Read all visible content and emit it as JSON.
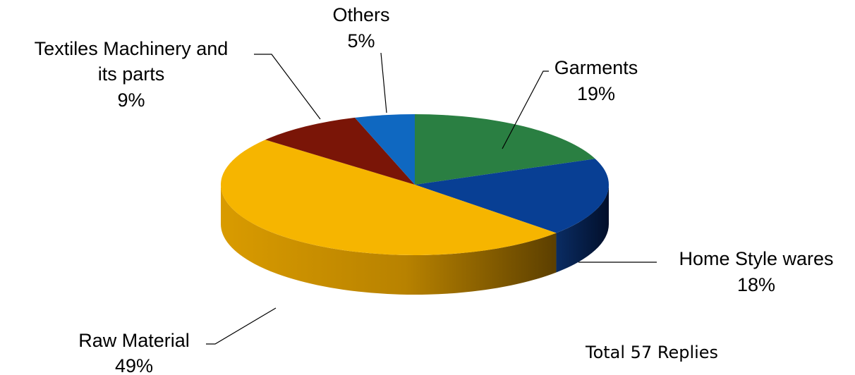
{
  "chart_data": {
    "type": "pie",
    "style": "3d",
    "title": "",
    "slices": [
      {
        "name": "Garments",
        "value": 19,
        "label_line1": "Garments",
        "label_line2": "",
        "pct": "19%",
        "color": "#2a7f42"
      },
      {
        "name": "Home Style wares",
        "value": 18,
        "label_line1": "Home Style wares",
        "label_line2": "",
        "pct": "18%",
        "color": "#083f94"
      },
      {
        "name": "Raw Material",
        "value": 49,
        "label_line1": "Raw Material",
        "label_line2": "",
        "pct": "49%",
        "color": "#f6b500"
      },
      {
        "name": "Textiles Machinery and its parts",
        "value": 9,
        "label_line1": "Textiles Machinery and",
        "label_line2": "its parts",
        "pct": "9%",
        "color": "#7a1507"
      },
      {
        "name": "Others",
        "value": 5,
        "label_line1": "Others",
        "label_line2": "",
        "pct": "5%",
        "color": "#0f68c1"
      }
    ]
  },
  "note": "Total 57 Replies"
}
